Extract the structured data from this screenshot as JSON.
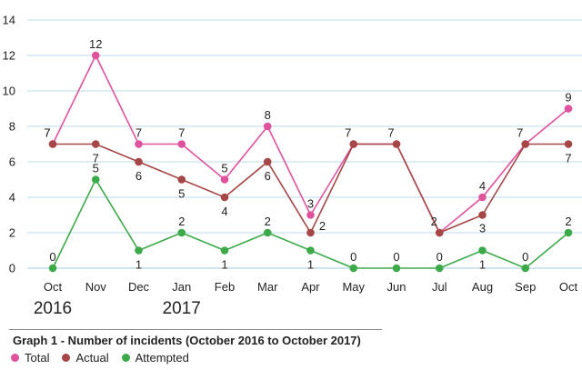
{
  "chart_data": {
    "type": "line",
    "caption": "Graph 1 - Number of incidents (October 2016 to October 2017)",
    "categories": [
      "Oct",
      "Nov",
      "Dec",
      "Jan",
      "Feb",
      "Mar",
      "Apr",
      "May",
      "Jun",
      "Jul",
      "Aug",
      "Sep",
      "Oct"
    ],
    "year_labels": [
      {
        "category_index": 0,
        "text": "2016"
      },
      {
        "category_index": 3,
        "text": "2017"
      }
    ],
    "ylim": [
      0,
      14
    ],
    "yticks": [
      0,
      2,
      4,
      6,
      8,
      10,
      12,
      14
    ],
    "grid": "horizontal",
    "legend_position": "bottom-left",
    "series": [
      {
        "name": "Total",
        "color": "#e0529c",
        "values": [
          7,
          12,
          7,
          7,
          5,
          8,
          3,
          7,
          7,
          2,
          4,
          7,
          9
        ]
      },
      {
        "name": "Actual",
        "color": "#a64646",
        "values": [
          7,
          7,
          6,
          5,
          4,
          6,
          2,
          7,
          7,
          2,
          3,
          7,
          7
        ]
      },
      {
        "name": "Attempted",
        "color": "#3daa4a",
        "values": [
          0,
          5,
          1,
          2,
          1,
          2,
          1,
          0,
          0,
          0,
          1,
          0,
          2
        ]
      }
    ]
  }
}
